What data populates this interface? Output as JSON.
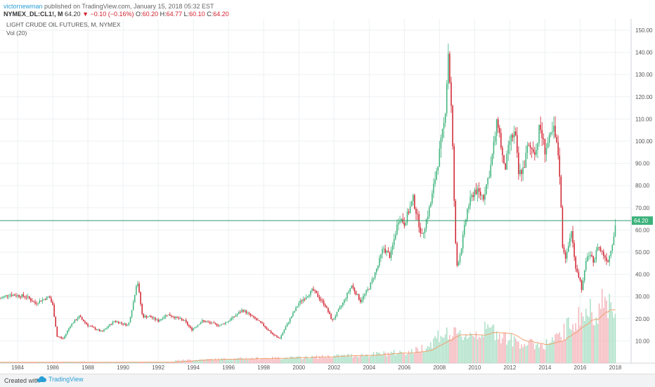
{
  "header": {
    "publisher": "victornewman",
    "published_text": "published on TradingView.com, January 15, 2018 05:32 EST",
    "symbol": "NYMEX_DL:CL1!, M",
    "last": "64.20",
    "change": "▼ −0.10 (−0.16%)",
    "o_label": "O:",
    "o_value": "60.20",
    "h_label": "H:",
    "h_value": "64.77",
    "l_label": "L:",
    "l_value": "60.10",
    "c_label": "C:",
    "c_value": "64.20"
  },
  "legend": {
    "title": "LIGHT CRUDE OIL FUTURES, M, NYMEX",
    "volume": "Vol (20)"
  },
  "footer": {
    "created_with": "Created with",
    "brand": "TradingView"
  },
  "colors": {
    "up": "#3cb37b",
    "down": "#d0202c",
    "vol_up": "#a9dfc5",
    "vol_down": "#f4b5ba",
    "vol_ma": "#f0a070",
    "hline": "#2e9b6e",
    "price_label": "#3cb37b"
  },
  "chart_data": {
    "type": "candlestick",
    "title": "LIGHT CRUDE OIL FUTURES, M, NYMEX",
    "y_axis_ticks": [
      "10.00",
      "20.00",
      "30.00",
      "40.00",
      "50.00",
      "60.00",
      "70.00",
      "80.00",
      "90.00",
      "100.00",
      "110.00",
      "120.00",
      "130.00",
      "140.00",
      "150.00"
    ],
    "ylim": [
      0,
      150
    ],
    "x_axis_ticks": [
      "1984",
      "1986",
      "1988",
      "1990",
      "1992",
      "1994",
      "1996",
      "1998",
      "2000",
      "2002",
      "2004",
      "2006",
      "2008",
      "2010",
      "2012",
      "2014",
      "2016",
      "2018"
    ],
    "xlim": [
      1983,
      2018.9
    ],
    "last_price_label": "64.20",
    "horizontal_line": 64.2,
    "price_anchors": [
      [
        1983.0,
        29
      ],
      [
        1983.5,
        31
      ],
      [
        1984.5,
        30
      ],
      [
        1985.0,
        27
      ],
      [
        1985.8,
        30
      ],
      [
        1986.0,
        26
      ],
      [
        1986.25,
        12
      ],
      [
        1986.6,
        11
      ],
      [
        1987.0,
        17
      ],
      [
        1987.5,
        21
      ],
      [
        1988.0,
        17
      ],
      [
        1988.8,
        14
      ],
      [
        1989.5,
        19
      ],
      [
        1990.3,
        17
      ],
      [
        1990.6,
        28
      ],
      [
        1990.8,
        38
      ],
      [
        1991.1,
        21
      ],
      [
        1991.5,
        21
      ],
      [
        1992.0,
        19
      ],
      [
        1992.5,
        22
      ],
      [
        1993.5,
        19
      ],
      [
        1993.9,
        15
      ],
      [
        1994.5,
        19
      ],
      [
        1995.0,
        18
      ],
      [
        1995.5,
        17
      ],
      [
        1996.0,
        19
      ],
      [
        1996.8,
        24
      ],
      [
        1997.5,
        20
      ],
      [
        1998.0,
        17
      ],
      [
        1998.5,
        13
      ],
      [
        1998.9,
        11
      ],
      [
        1999.5,
        20
      ],
      [
        2000.0,
        27
      ],
      [
        2000.8,
        33
      ],
      [
        2001.5,
        26
      ],
      [
        2001.9,
        19
      ],
      [
        2002.5,
        27
      ],
      [
        2003.0,
        35
      ],
      [
        2003.5,
        28
      ],
      [
        2004.0,
        34
      ],
      [
        2004.5,
        44
      ],
      [
        2004.8,
        52
      ],
      [
        2005.2,
        48
      ],
      [
        2005.7,
        66
      ],
      [
        2006.0,
        63
      ],
      [
        2006.5,
        74
      ],
      [
        2007.0,
        57
      ],
      [
        2007.5,
        72
      ],
      [
        2007.9,
        90
      ],
      [
        2008.3,
        110
      ],
      [
        2008.5,
        140
      ],
      [
        2008.7,
        110
      ],
      [
        2008.9,
        55
      ],
      [
        2009.0,
        44
      ],
      [
        2009.2,
        50
      ],
      [
        2009.6,
        70
      ],
      [
        2010.0,
        78
      ],
      [
        2010.5,
        75
      ],
      [
        2010.9,
        88
      ],
      [
        2011.3,
        110
      ],
      [
        2011.7,
        86
      ],
      [
        2012.0,
        100
      ],
      [
        2012.3,
        104
      ],
      [
        2012.5,
        85
      ],
      [
        2012.8,
        88
      ],
      [
        2013.0,
        97
      ],
      [
        2013.5,
        96
      ],
      [
        2013.7,
        107
      ],
      [
        2014.0,
        96
      ],
      [
        2014.5,
        105
      ],
      [
        2014.8,
        92
      ],
      [
        2015.0,
        53
      ],
      [
        2015.2,
        47
      ],
      [
        2015.5,
        60
      ],
      [
        2015.7,
        45
      ],
      [
        2016.0,
        37
      ],
      [
        2016.1,
        33
      ],
      [
        2016.4,
        49
      ],
      [
        2016.8,
        46
      ],
      [
        2017.0,
        53
      ],
      [
        2017.4,
        48
      ],
      [
        2017.6,
        46
      ],
      [
        2017.9,
        57
      ],
      [
        2018.04,
        64.2
      ]
    ],
    "volume_anchors": [
      [
        1983.0,
        0.4
      ],
      [
        1992.9,
        0.5
      ],
      [
        1993.0,
        1.3
      ],
      [
        1996.0,
        2.0
      ],
      [
        2000.0,
        2.6
      ],
      [
        2004.0,
        4.0
      ],
      [
        2006.5,
        5.5
      ],
      [
        2007.5,
        9
      ],
      [
        2008.0,
        14
      ],
      [
        2009.0,
        13
      ],
      [
        2010.0,
        14
      ],
      [
        2011.0,
        16
      ],
      [
        2012.0,
        11
      ],
      [
        2013.0,
        9
      ],
      [
        2014.0,
        9
      ],
      [
        2014.8,
        12
      ],
      [
        2015.5,
        19
      ],
      [
        2016.0,
        22
      ],
      [
        2016.5,
        24
      ],
      [
        2017.0,
        26
      ],
      [
        2017.8,
        30
      ],
      [
        2018.04,
        26
      ]
    ],
    "volume_max": 40
  }
}
